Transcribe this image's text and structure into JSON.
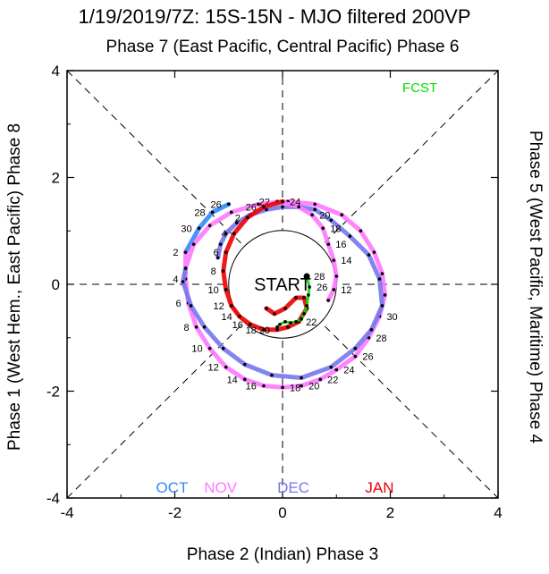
{
  "chart_data": {
    "type": "line",
    "title": "1/19/2019/7Z: 15S-15N - MJO filtered 200VP",
    "top_label": "Phase 7 (East Pacific, Central Pacific) Phase 6",
    "xlabel": "Phase 2 (Indian) Phase 3",
    "ylabel": "Phase 1 (West Hem., East Pacific) Phase 8",
    "right_label": "Phase 5 (West Pacific, Maritime) Phase 4",
    "xlim": [
      -4,
      4
    ],
    "ylim": [
      -4,
      4
    ],
    "x_ticks": [
      "-4",
      "-2",
      "0",
      "2",
      "4"
    ],
    "y_ticks": [
      "4",
      "2",
      "0",
      "-2",
      "-4"
    ],
    "center_label": "START",
    "fcst_label": "FCST",
    "colors": {
      "OCT": "#3388ff",
      "NOV": "#ff77ff",
      "DEC": "#7777ee",
      "JAN": "#ee0000",
      "FCST": "#00dd00"
    },
    "legend": [
      "OCT",
      "NOV",
      "DEC",
      "JAN"
    ],
    "series": [
      {
        "name": "OCT",
        "x": [
          -1.0,
          -1.3,
          -1.55,
          -1.8
        ],
        "y": [
          1.5,
          1.35,
          1.05,
          0.6
        ],
        "day_labels": [
          "26",
          "28",
          "30",
          ""
        ]
      },
      {
        "name": "NOV",
        "x": [
          -1.8,
          -1.8,
          -1.75,
          -1.6,
          -1.35,
          -1.05,
          -0.7,
          -0.35,
          0.0,
          0.35,
          0.7,
          1.0,
          1.35,
          1.6,
          1.8,
          1.9,
          1.85,
          1.7,
          1.45,
          1.1,
          0.6,
          0.1,
          -0.45,
          -0.95,
          -1.35,
          -1.65,
          -1.8
        ],
        "y": [
          0.6,
          0.1,
          -0.35,
          -0.8,
          -1.2,
          -1.55,
          -1.78,
          -1.9,
          -1.93,
          -1.9,
          -1.78,
          -1.6,
          -1.35,
          -1.0,
          -0.6,
          -0.2,
          0.2,
          0.6,
          1.0,
          1.3,
          1.5,
          1.55,
          1.5,
          1.35,
          1.1,
          0.75,
          0.3
        ],
        "day_labels": [
          "2",
          "4",
          "6",
          "8",
          "10",
          "12",
          "14",
          "16",
          "18",
          "20",
          "22",
          "24",
          "26",
          "28",
          "30",
          "",
          "",
          "",
          "",
          "",
          "",
          "",
          "",
          "",
          "",
          "",
          ""
        ]
      },
      {
        "name": "DEC",
        "x": [
          -1.8,
          -1.85,
          -1.7,
          -1.45,
          -1.1,
          -0.7,
          -0.2,
          0.35,
          0.9,
          1.35,
          1.65,
          1.85,
          1.8,
          1.6,
          1.25,
          0.9,
          0.6,
          0.3,
          0.0,
          -0.3,
          -0.6,
          -0.85,
          -1.05,
          -1.15,
          -1.2
        ],
        "y": [
          0.3,
          0.05,
          -0.4,
          -0.8,
          -1.2,
          -1.5,
          -1.7,
          -1.75,
          -1.55,
          -1.2,
          -0.85,
          -0.4,
          0.1,
          0.55,
          0.9,
          1.2,
          1.4,
          1.45,
          1.45,
          1.4,
          1.3,
          1.15,
          0.95,
          0.75,
          0.5
        ],
        "day_labels": [
          "",
          "",
          "",
          "",
          "",
          "",
          "",
          "",
          "",
          "",
          "",
          "",
          "",
          "",
          "",
          "",
          "",
          "",
          "",
          "",
          "",
          "",
          "",
          "",
          ""
        ]
      },
      {
        "name": "NOV_late",
        "x": [
          -0.1,
          0.3,
          0.55,
          0.75,
          0.85,
          0.95,
          1.0,
          0.95,
          0.85
        ],
        "y": [
          1.55,
          1.45,
          1.3,
          1.05,
          0.75,
          0.45,
          0.15,
          -0.1,
          -0.3
        ],
        "day_labels": [
          "22",
          "",
          "20",
          "18",
          "16",
          "14",
          "",
          "12",
          ""
        ]
      },
      {
        "name": "JAN",
        "x": [
          0.0,
          -0.35,
          -0.65,
          -0.9,
          -1.05,
          -1.1,
          -1.05,
          -0.95,
          -0.8,
          -0.6,
          -0.35,
          -0.1,
          0.1
        ],
        "y": [
          1.55,
          1.45,
          1.25,
          0.95,
          0.6,
          0.25,
          -0.1,
          -0.4,
          -0.6,
          -0.75,
          -0.85,
          -0.85,
          -0.8
        ],
        "day_labels": [
          "24",
          "26",
          "2",
          "4",
          "6",
          "8",
          "10",
          "12",
          "14",
          "16",
          "18",
          "20",
          ""
        ]
      },
      {
        "name": "JAN_mid",
        "x": [
          0.1,
          0.3,
          0.45,
          0.4,
          0.25,
          0.05,
          -0.15,
          -0.3
        ],
        "y": [
          -0.8,
          -0.7,
          -0.45,
          -0.25,
          -0.25,
          -0.45,
          -0.55,
          -0.45
        ],
        "day_labels": [
          "",
          "22",
          "",
          "",
          "",
          "",
          "",
          ""
        ]
      },
      {
        "name": "FCST",
        "x": [
          0.45,
          0.5,
          0.48,
          0.45,
          0.4,
          0.35,
          0.25,
          0.15,
          0.05,
          -0.05,
          -0.1
        ],
        "y": [
          0.15,
          -0.05,
          -0.2,
          -0.4,
          -0.55,
          -0.65,
          -0.7,
          -0.72,
          -0.7,
          -0.75,
          -0.8
        ],
        "day_labels": [
          "28",
          "26",
          "",
          "",
          "",
          "",
          "",
          "",
          "",
          "",
          ""
        ]
      }
    ]
  }
}
